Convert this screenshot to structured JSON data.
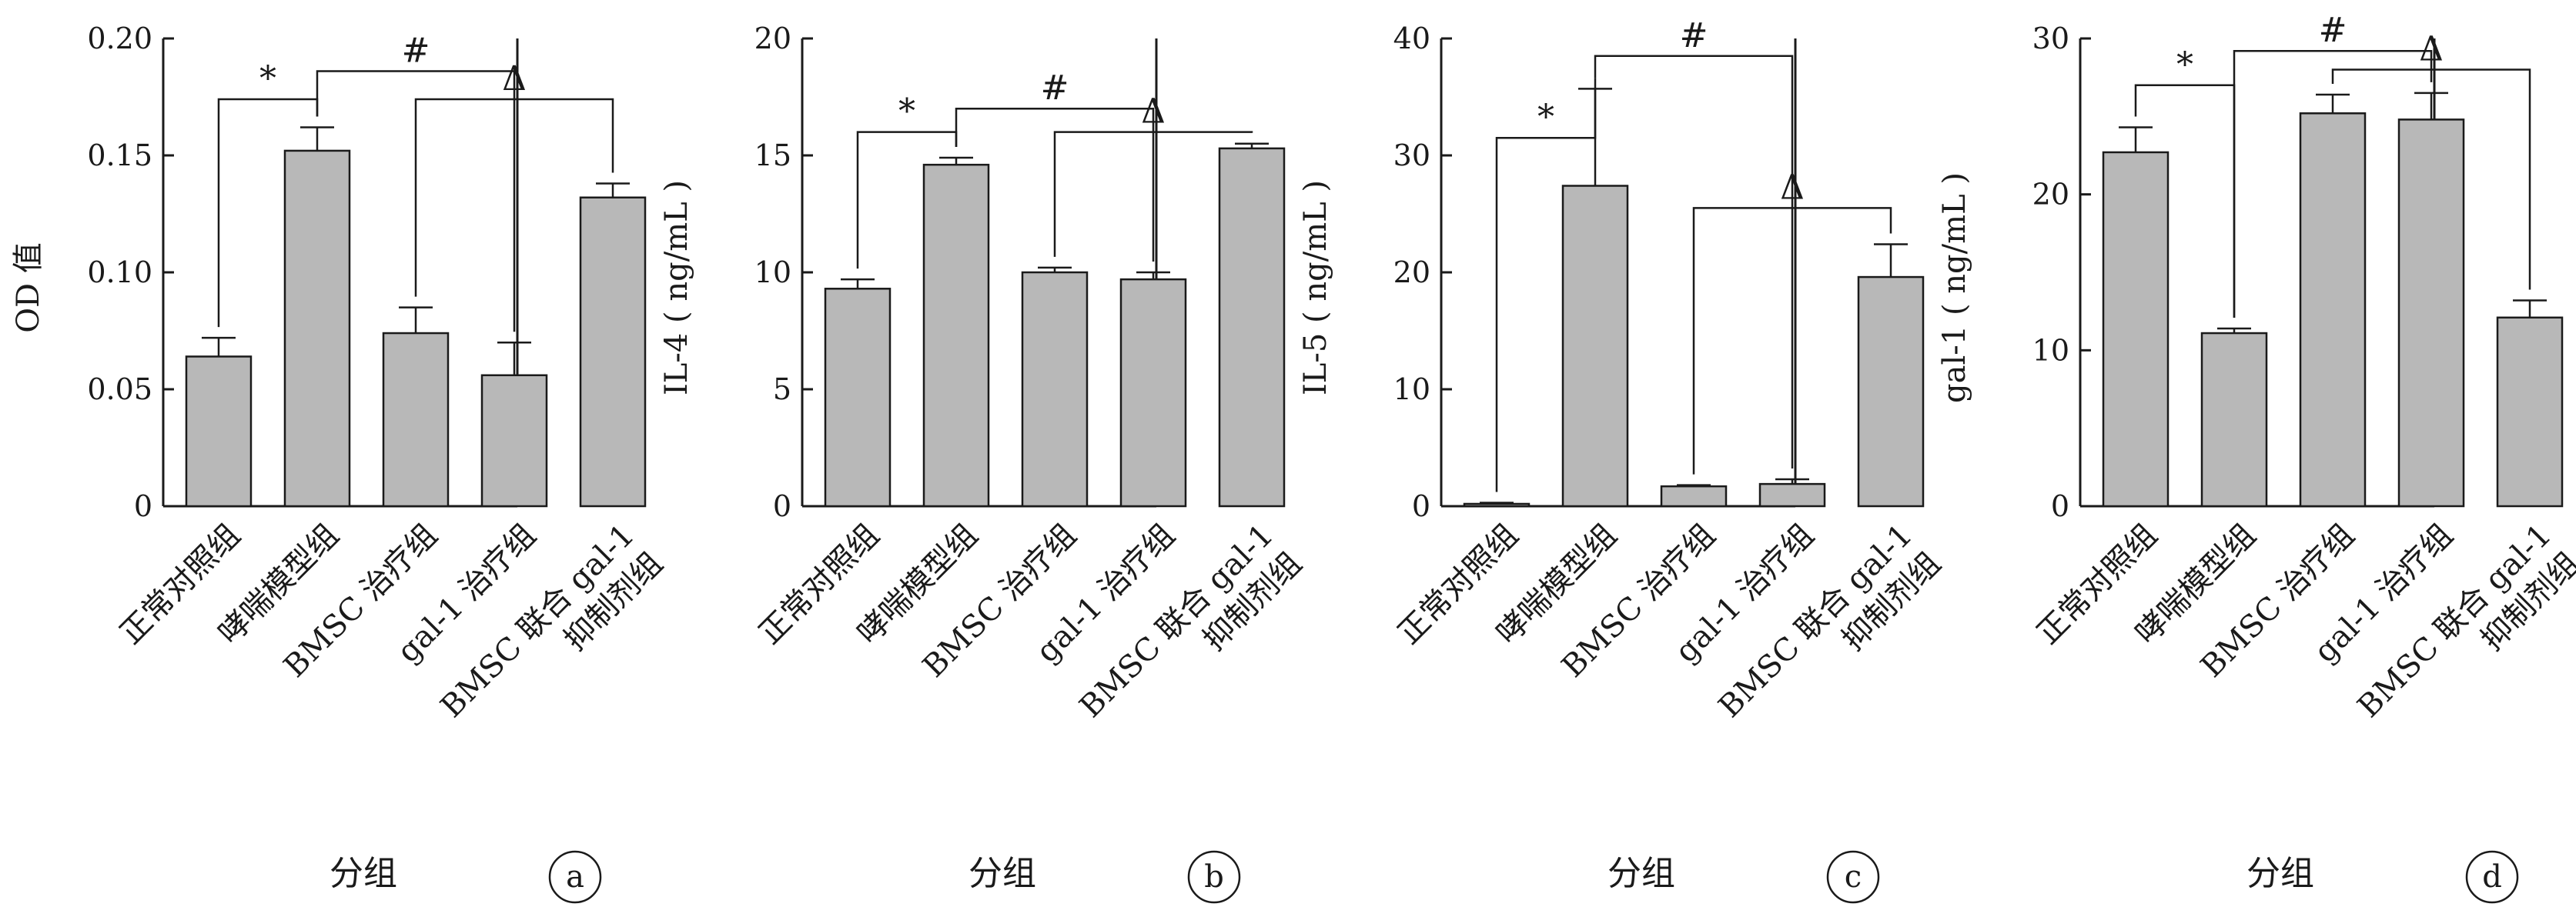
{
  "chart_data": [
    {
      "type": "bar",
      "panel_label": "a",
      "ylabel": "OD 值",
      "xlabel": "分组",
      "ylim": [
        0,
        0.2
      ],
      "yticks": [
        "0",
        "0.05",
        "0.10",
        "0.15",
        "0.20"
      ],
      "ytick_values": [
        0,
        0.05,
        0.1,
        0.15,
        0.2
      ],
      "categories": [
        [
          "正常对照组"
        ],
        [
          "哮喘模型组"
        ],
        [
          "BMSC 治疗组"
        ],
        [
          "gal-1 治疗组"
        ],
        [
          "BMSC 联合 gal-1",
          "抑制剂组"
        ]
      ],
      "values": [
        0.064,
        0.152,
        0.074,
        0.056,
        0.132
      ],
      "errors": [
        0.008,
        0.01,
        0.011,
        0.014,
        0.006
      ],
      "significance": [
        {
          "symbol": "*",
          "from": 0,
          "to": 1,
          "level": 0.174
        },
        {
          "symbol": "#",
          "from": 1,
          "to": 3,
          "level": 0.186
        },
        {
          "symbol": "Δ",
          "from": 2,
          "to": 4,
          "level": 0.174
        }
      ]
    },
    {
      "type": "bar",
      "panel_label": "b",
      "ylabel": "IL-4 ( ng/mL )",
      "xlabel": "分组",
      "ylim": [
        0,
        20
      ],
      "yticks": [
        "0",
        "5",
        "10",
        "15",
        "20"
      ],
      "ytick_values": [
        0,
        5,
        10,
        15,
        20
      ],
      "categories": [
        [
          "正常对照组"
        ],
        [
          "哮喘模型组"
        ],
        [
          "BMSC 治疗组"
        ],
        [
          "gal-1 治疗组"
        ],
        [
          "BMSC 联合 gal-1",
          "抑制剂组"
        ]
      ],
      "values": [
        9.3,
        14.6,
        10.0,
        9.7,
        15.3
      ],
      "errors": [
        0.4,
        0.3,
        0.2,
        0.3,
        0.2
      ],
      "significance": [
        {
          "symbol": "*",
          "from": 0,
          "to": 1,
          "level": 16.0
        },
        {
          "symbol": "#",
          "from": 1,
          "to": 3,
          "level": 17.0
        },
        {
          "symbol": "Δ",
          "from": 2,
          "to": 4,
          "level": 16.0
        }
      ]
    },
    {
      "type": "bar",
      "panel_label": "c",
      "ylabel": "IL-5 ( ng/mL )",
      "xlabel": "分组",
      "ylim": [
        0,
        40
      ],
      "yticks": [
        "0",
        "10",
        "20",
        "30",
        "40"
      ],
      "ytick_values": [
        0,
        10,
        20,
        30,
        40
      ],
      "categories": [
        [
          "正常对照组"
        ],
        [
          "哮喘模型组"
        ],
        [
          "BMSC 治疗组"
        ],
        [
          "gal-1 治疗组"
        ],
        [
          "BMSC 联合 gal-1",
          "抑制剂组"
        ]
      ],
      "values": [
        0.2,
        27.4,
        1.7,
        1.9,
        19.6
      ],
      "errors": [
        0.1,
        8.3,
        0.1,
        0.4,
        2.8
      ],
      "significance": [
        {
          "symbol": "*",
          "from": 0,
          "to": 1,
          "level": 31.5
        },
        {
          "symbol": "#",
          "from": 1,
          "to": 3,
          "level": 38.5
        },
        {
          "symbol": "Δ",
          "from": 2,
          "to": 4,
          "level": 25.5
        }
      ]
    },
    {
      "type": "bar",
      "panel_label": "d",
      "ylabel": "gal-1 ( ng/mL )",
      "xlabel": "分组",
      "ylim": [
        0,
        30
      ],
      "yticks": [
        "0",
        "10",
        "20",
        "30"
      ],
      "ytick_values": [
        0,
        10,
        20,
        30
      ],
      "categories": [
        [
          "正常对照组"
        ],
        [
          "哮喘模型组"
        ],
        [
          "BMSC 治疗组"
        ],
        [
          "gal-1 治疗组"
        ],
        [
          "BMSC 联合 gal-1",
          "抑制剂组"
        ]
      ],
      "values": [
        22.7,
        11.1,
        25.2,
        24.8,
        12.1
      ],
      "errors": [
        1.6,
        0.3,
        1.2,
        1.7,
        1.1
      ],
      "significance": [
        {
          "symbol": "*",
          "from": 0,
          "to": 1,
          "level": 27.0
        },
        {
          "symbol": "#",
          "from": 1,
          "to": 3,
          "level": 29.2
        },
        {
          "symbol": "Δ",
          "from": 2,
          "to": 4,
          "level": 28.0
        }
      ]
    }
  ]
}
